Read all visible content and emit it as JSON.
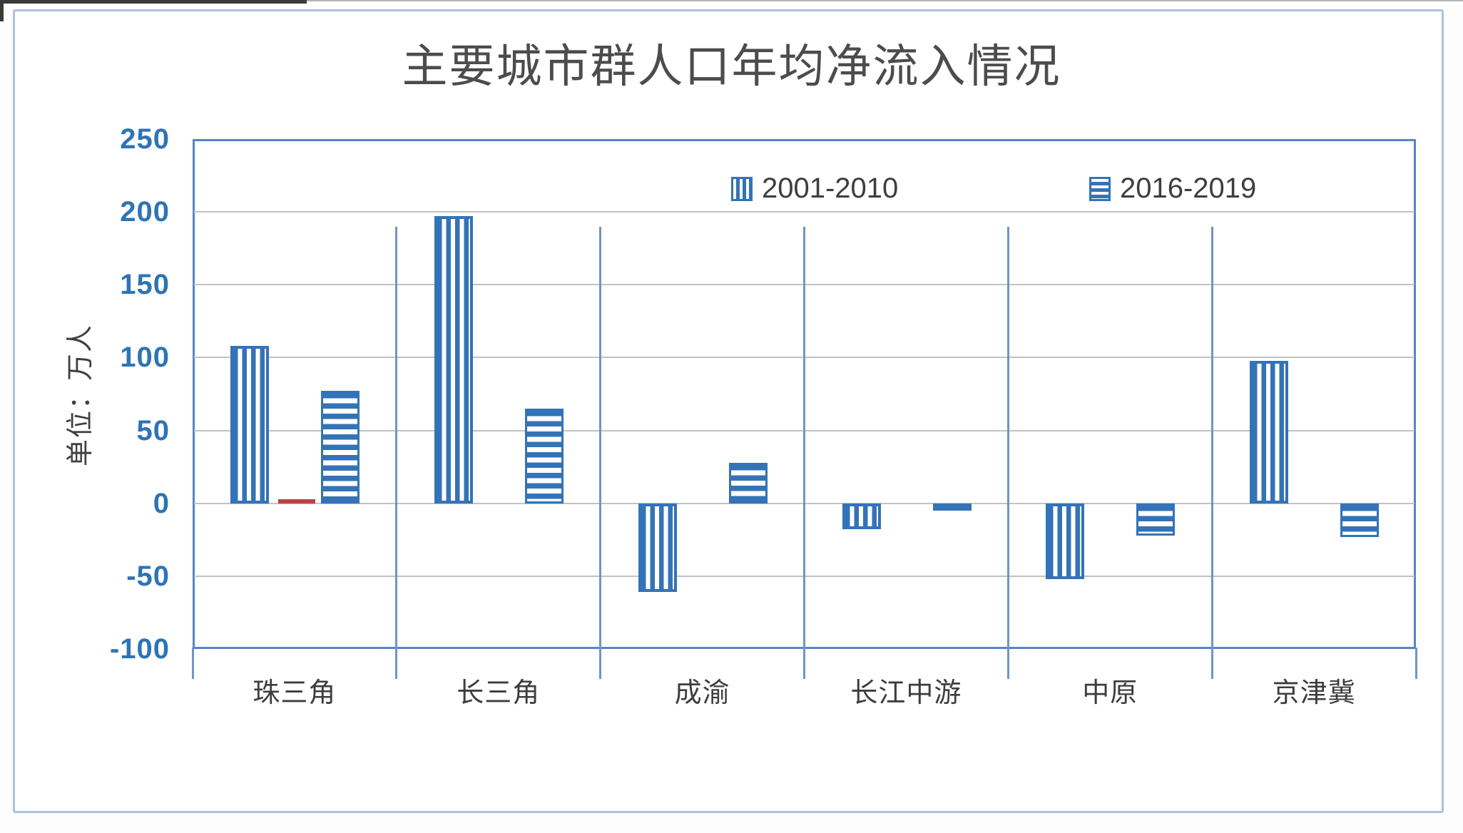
{
  "chart_data": {
    "type": "bar",
    "title": "主要城市群人口年均净流入情况",
    "ylabel": "单位：万人",
    "xlabel": "",
    "unit": "万人",
    "categories": [
      "珠三角",
      "长三角",
      "成渝",
      "长江中游",
      "中原",
      "京津冀"
    ],
    "series": [
      {
        "name": "2001-2010",
        "pattern": "vertical-stripes",
        "color": "#3473B7",
        "in_legend": true,
        "values": [
          108,
          197,
          -61,
          -18,
          -52,
          98
        ]
      },
      {
        "name": "",
        "pattern": "solid",
        "color": "#B8443F",
        "in_legend": false,
        "values": [
          3,
          0,
          0,
          0,
          0,
          0
        ]
      },
      {
        "name": "2016-2019",
        "pattern": "horizontal-stripes",
        "color": "#3473B7",
        "in_legend": true,
        "values": [
          77,
          65,
          28,
          -5,
          -22,
          -23
        ]
      }
    ],
    "y_ticks": [
      250,
      200,
      150,
      100,
      50,
      0,
      -50,
      -100
    ],
    "ylim": [
      -100,
      250
    ],
    "grid": true,
    "legend_position": "top-center-inside"
  },
  "style": {
    "bar_blue": "#3473B7",
    "red": "#B8443F",
    "axis_frame_blue": "#5585C4",
    "separator_blue": "#6E95CB",
    "gridline_gray": "#C2C2C2",
    "tick_label_blue": "#2E74B5",
    "text_dark": "#3D3D3D",
    "chart_border": "#A9C3DF"
  }
}
